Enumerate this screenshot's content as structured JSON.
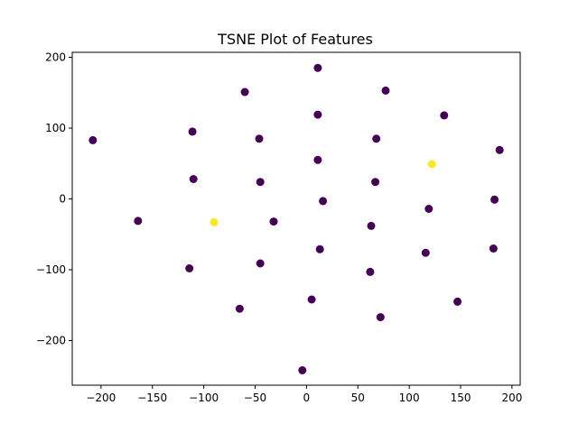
{
  "chart_data": {
    "type": "scatter",
    "title": "TSNE Plot of Features",
    "xlabel": "",
    "ylabel": "",
    "xlim": [
      -228,
      208
    ],
    "ylim": [
      -263,
      207
    ],
    "xticks": [
      -200,
      -150,
      -100,
      -50,
      0,
      50,
      100,
      150,
      200
    ],
    "yticks": [
      -200,
      -100,
      0,
      100,
      200
    ],
    "xtick_labels": [
      "−200",
      "−150",
      "−100",
      "−50",
      "0",
      "50",
      "100",
      "150",
      "200"
    ],
    "ytick_labels": [
      "−200",
      "−100",
      "0",
      "100",
      "200"
    ],
    "grid": false,
    "colors": {
      "class0": "#440154",
      "class1": "#fde725"
    },
    "points": [
      {
        "x": 11,
        "y": 185,
        "c": 0
      },
      {
        "x": -60,
        "y": 151,
        "c": 0
      },
      {
        "x": 77,
        "y": 153,
        "c": 0
      },
      {
        "x": 11,
        "y": 119,
        "c": 0
      },
      {
        "x": 134,
        "y": 118,
        "c": 0
      },
      {
        "x": -208,
        "y": 83,
        "c": 0
      },
      {
        "x": -111,
        "y": 95,
        "c": 0
      },
      {
        "x": -46,
        "y": 85,
        "c": 0
      },
      {
        "x": 68,
        "y": 85,
        "c": 0
      },
      {
        "x": 188,
        "y": 69,
        "c": 0
      },
      {
        "x": 11,
        "y": 55,
        "c": 0
      },
      {
        "x": 122,
        "y": 49,
        "c": 1
      },
      {
        "x": -110,
        "y": 28,
        "c": 0
      },
      {
        "x": -45,
        "y": 24,
        "c": 0
      },
      {
        "x": 67,
        "y": 24,
        "c": 0
      },
      {
        "x": 16,
        "y": -3,
        "c": 0
      },
      {
        "x": 183,
        "y": -1,
        "c": 0
      },
      {
        "x": 119,
        "y": -14,
        "c": 0
      },
      {
        "x": -164,
        "y": -31,
        "c": 0
      },
      {
        "x": -90,
        "y": -33,
        "c": 1
      },
      {
        "x": -32,
        "y": -32,
        "c": 0
      },
      {
        "x": 63,
        "y": -38,
        "c": 0
      },
      {
        "x": 13,
        "y": -71,
        "c": 0
      },
      {
        "x": 116,
        "y": -76,
        "c": 0
      },
      {
        "x": 182,
        "y": -70,
        "c": 0
      },
      {
        "x": -114,
        "y": -98,
        "c": 0
      },
      {
        "x": -45,
        "y": -91,
        "c": 0
      },
      {
        "x": 62,
        "y": -103,
        "c": 0
      },
      {
        "x": 5,
        "y": -142,
        "c": 0
      },
      {
        "x": 147,
        "y": -145,
        "c": 0
      },
      {
        "x": -65,
        "y": -155,
        "c": 0
      },
      {
        "x": 72,
        "y": -167,
        "c": 0
      },
      {
        "x": -4,
        "y": -242,
        "c": 0
      }
    ]
  }
}
